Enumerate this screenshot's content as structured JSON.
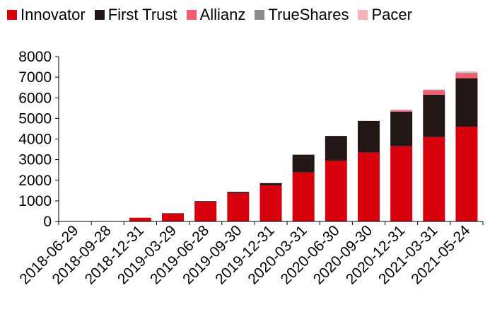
{
  "chart_data": {
    "type": "bar",
    "stacked": true,
    "categories": [
      "2018-06-29",
      "2018-09-28",
      "2018-12-31",
      "2019-03-29",
      "2019-06-28",
      "2019-09-30",
      "2019-12-31",
      "2020-03-31",
      "2020-06-30",
      "2020-09-30",
      "2020-12-31",
      "2021-03-31",
      "2021-05-24"
    ],
    "series": [
      {
        "name": "Innovator",
        "color": "#d9000d",
        "values": [
          0,
          0,
          170,
          370,
          950,
          1380,
          1750,
          2380,
          2950,
          3350,
          3650,
          4100,
          4600
        ]
      },
      {
        "name": "First Trust",
        "color": "#231815",
        "values": [
          0,
          0,
          10,
          30,
          40,
          60,
          110,
          860,
          1200,
          1530,
          1680,
          2050,
          2350
        ]
      },
      {
        "name": "Allianz",
        "color": "#f25c6e",
        "values": [
          0,
          0,
          0,
          0,
          0,
          0,
          0,
          0,
          0,
          0,
          50,
          200,
          220
        ]
      },
      {
        "name": "TrueShares",
        "color": "#8c8c8c",
        "values": [
          0,
          0,
          0,
          0,
          0,
          0,
          0,
          0,
          0,
          0,
          10,
          30,
          50
        ]
      },
      {
        "name": "Pacer",
        "color": "#f5b3b8",
        "values": [
          0,
          0,
          0,
          0,
          0,
          0,
          0,
          0,
          0,
          0,
          40,
          30,
          60
        ]
      }
    ],
    "yticks": [
      "0",
      "1000",
      "2000",
      "3000",
      "4000",
      "5000",
      "6000",
      "7000",
      "8000"
    ],
    "ylim": [
      0,
      8000
    ],
    "legend_position": "top",
    "grid": false
  }
}
